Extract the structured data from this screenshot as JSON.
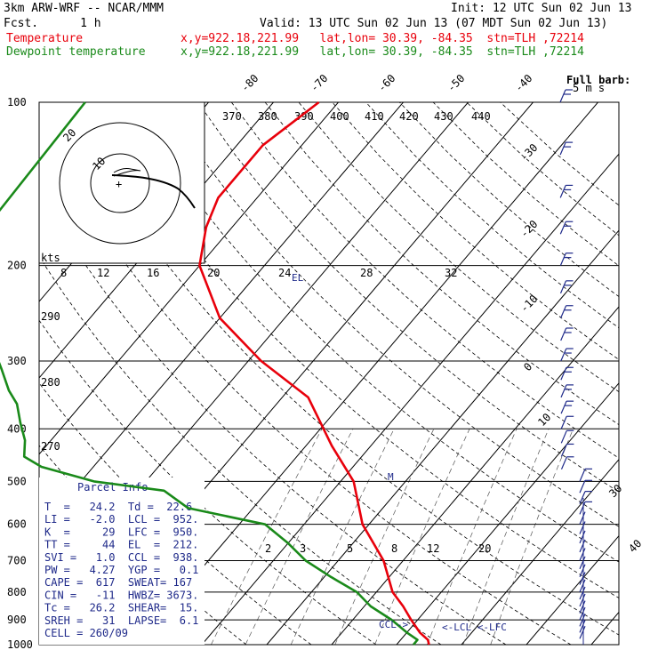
{
  "header": {
    "model": "3km ARW-WRF -- NCAR/MMM",
    "init": "Init: 12 UTC Sun 02 Jun 13",
    "fcst": "Fcst.      1 h",
    "valid": "Valid: 13 UTC Sun 02 Jun 13 (07 MDT Sun 02 Jun 13)",
    "temp_label": "Temperature",
    "temp_loc": "x,y=922.18,221.99   lat,lon= 30.39, -84.35  stn=TLH ,72214",
    "dew_label": "Dewpoint temperature",
    "dew_loc": "x,y=922.18,221.99   lat,lon= 30.39, -84.35  stn=TLH ,72214"
  },
  "colors": {
    "temperature": "#e8000b",
    "dewpoint": "#1a8a1a",
    "parcel_text": "#1f2a8a",
    "isobar": "#000000"
  },
  "wind_legend": {
    "line1": "Full barb:",
    "line2": "5 m s"
  },
  "hodograph": {
    "kts_label": "kts",
    "ring_label": "20"
  },
  "parcel_info": {
    "title": "Parcel Info",
    "rows": [
      "T  =   24.2  Td =  22.6",
      "LI =   -2.0  LCL =  952.",
      "K  =     29  LFC =  950.",
      "TT =     44  EL  =  212.",
      "SVI =   1.0  CCL =  938.",
      "PW =   4.27  YGP =   0.1",
      "CAPE =  617  SWEAT= 167",
      "CIN =   -11  HWBZ= 3673.",
      "Tc =   26.2  SHEAR=  15.",
      "SREH =   31  LAPSE=  6.1",
      "CELL = 260/09"
    ]
  },
  "level_labels": {
    "el": "EL",
    "ccl": "CCL->",
    "lcl": "<-LCL <-LFC",
    "m": "M"
  },
  "chart_data": {
    "type": "line",
    "title": "",
    "y_axis": {
      "scale": "log",
      "range_hpa": [
        1000,
        100
      ],
      "ticks": [
        "100",
        "200",
        "300",
        "400",
        "500",
        "600",
        "700",
        "800",
        "900",
        "1000"
      ]
    },
    "isotherm_labels_top": [
      "-80",
      "-70",
      "-60",
      "-50",
      "-40"
    ],
    "isotherm_labels_right": [
      "-30",
      "-20",
      "-10",
      "0",
      "10",
      "30",
      "40"
    ],
    "theta_labels": [
      "370",
      "380",
      "390",
      "400",
      "410",
      "420",
      "430",
      "440"
    ],
    "theta_labels_left": [
      "290",
      "280",
      "270"
    ],
    "mixing_ratio_labels_upper": [
      "8",
      "12",
      "16",
      "20",
      "24",
      "28",
      "32"
    ],
    "mixing_ratio_labels_lower": [
      "2",
      "3",
      "5",
      "8",
      "12",
      "20"
    ],
    "series": [
      {
        "name": "Temperature",
        "x_celsius": [
          25.0,
          24.2,
          22.0,
          19.0,
          16.0,
          12.5,
          7.0,
          -1.0,
          -8.0,
          -16.0,
          -26.0,
          -38.0,
          -50.0,
          -60.0,
          -64.0,
          -66.0,
          -66.0,
          -63.0
        ],
        "p_hpa": [
          1000,
          980,
          950,
          900,
          850,
          800,
          700,
          600,
          500,
          430,
          350,
          300,
          250,
          200,
          170,
          150,
          120,
          100
        ]
      },
      {
        "name": "Dewpoint temperature",
        "x_celsius": [
          22.6,
          22.6,
          20.0,
          16.0,
          11.0,
          7.0,
          1.0,
          -5.0,
          -10.0,
          -16.0,
          -30.0,
          -36.0,
          -48.0,
          -58.0,
          -62.0,
          -64.0,
          -67.0,
          -70.0,
          -73.0,
          -77.0,
          -80.0,
          -86.0,
          -92.0,
          -95.0,
          -98.0,
          -99.0
        ],
        "p_hpa": [
          1000,
          980,
          950,
          900,
          850,
          800,
          750,
          700,
          650,
          600,
          560,
          520,
          500,
          470,
          450,
          420,
          390,
          360,
          340,
          310,
          290,
          270,
          250,
          210,
          160,
          100
        ]
      }
    ]
  }
}
